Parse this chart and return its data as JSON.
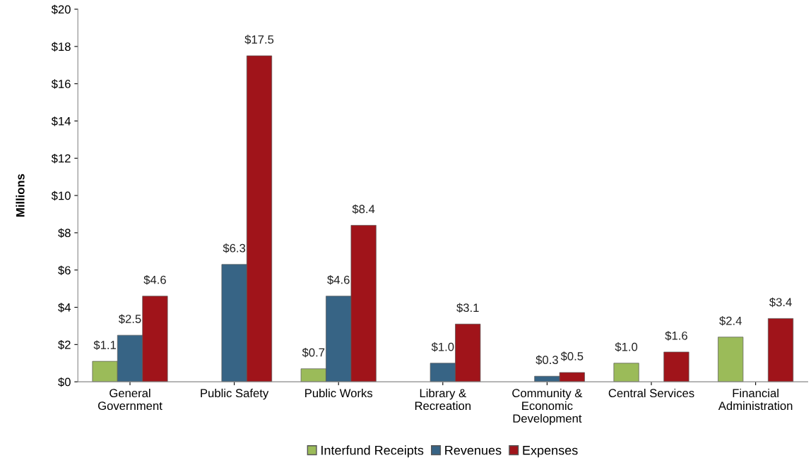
{
  "chart_data": {
    "type": "bar",
    "ylabel": "Millions",
    "categories": [
      "General\nGovernment",
      "Public Safety",
      "Public Works",
      "Library &\nRecreation",
      "Community &\nEconomic\nDevelopment",
      "Central Services",
      "Financial\nAdministration"
    ],
    "series": [
      {
        "name": "Interfund Receipts",
        "color": "#9bbb59",
        "values": [
          1.1,
          null,
          0.7,
          null,
          null,
          1.0,
          2.4
        ],
        "value_labels": [
          "$1.1",
          null,
          "$0.7",
          null,
          null,
          "$1.0",
          "$2.4"
        ]
      },
      {
        "name": "Revenues",
        "color": "#376485",
        "values": [
          2.5,
          6.3,
          4.6,
          1.0,
          0.3,
          null,
          null
        ],
        "value_labels": [
          "$2.5",
          "$6.3",
          "$4.6",
          "$1.0",
          "$0.3",
          null,
          null
        ]
      },
      {
        "name": "Expenses",
        "color": "#a0141a",
        "values": [
          4.6,
          17.5,
          8.4,
          3.1,
          0.5,
          1.6,
          3.4
        ],
        "value_labels": [
          "$4.6",
          "$17.5",
          "$8.4",
          "$3.1",
          "$0.5",
          "$1.6",
          "$3.4"
        ]
      }
    ],
    "ylim": [
      0,
      20
    ],
    "yticks": [
      {
        "value": 0,
        "label": "$0"
      },
      {
        "value": 2,
        "label": "$2"
      },
      {
        "value": 4,
        "label": "$4"
      },
      {
        "value": 6,
        "label": "$6"
      },
      {
        "value": 8,
        "label": "$8"
      },
      {
        "value": 10,
        "label": "$10"
      },
      {
        "value": 12,
        "label": "$12"
      },
      {
        "value": 14,
        "label": "$14"
      },
      {
        "value": 16,
        "label": "$16"
      },
      {
        "value": 18,
        "label": "$18"
      },
      {
        "value": 20,
        "label": "$20"
      }
    ],
    "grid": false,
    "legend": "bottom"
  }
}
